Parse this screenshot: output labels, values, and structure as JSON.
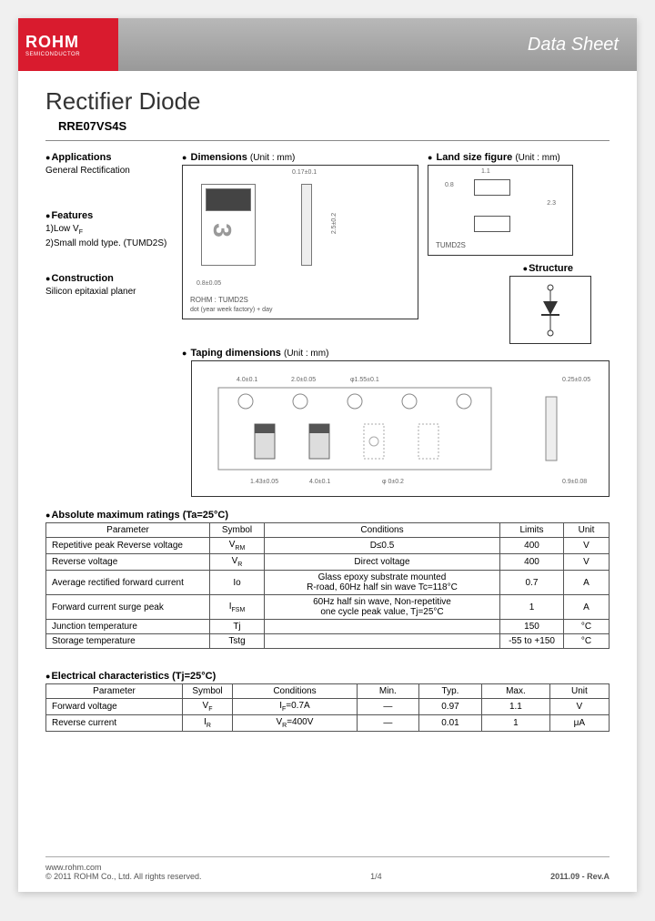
{
  "header": {
    "logo": "ROHM",
    "logo_sub": "SEMICONDUCTOR",
    "doc_type": "Data Sheet"
  },
  "title": "Rectifier Diode",
  "part_number": "RRE07VS4S",
  "sections": {
    "applications": {
      "title": "Applications",
      "body": "General Rectification"
    },
    "features": {
      "title": "Features",
      "items": [
        "1)Low V",
        "2)Small mold type. (TUMD2S)"
      ],
      "sub_f": "F"
    },
    "construction": {
      "title": "Construction",
      "body": "Silicon epitaxial planer"
    },
    "dimensions": {
      "title": "Dimensions",
      "unit": "(Unit : mm)",
      "pkg_name": "ROHM : TUMD2S",
      "note": "dot (year week factory) + day"
    },
    "land": {
      "title": "Land size figure",
      "unit": "(Unit : mm)",
      "pkg": "TUMD2S",
      "dims": {
        "w": "1.1",
        "h": "0.8",
        "pitch": "2.3"
      }
    },
    "structure": {
      "title": "Structure"
    },
    "taping": {
      "title": "Taping dimensions",
      "unit": "(Unit : mm)"
    }
  },
  "abs_max": {
    "title": "Absolute maximum ratings (Ta=25°C)",
    "headers": [
      "Parameter",
      "Symbol",
      "Conditions",
      "Limits",
      "Unit"
    ],
    "rows": [
      [
        "Repetitive peak Reverse voltage",
        "V<sub>RM</sub>",
        "D≤0.5",
        "400",
        "V"
      ],
      [
        "Reverse voltage",
        "V<sub>R</sub>",
        "Direct voltage",
        "400",
        "V"
      ],
      [
        "Average rectified forward current",
        "Io",
        "Glass epoxy substrate mounted<br>R-road, 60Hz half sin wave Tc=118°C",
        "0.7",
        "A"
      ],
      [
        "Forward current surge peak",
        "I<sub>FSM</sub>",
        "60Hz half sin wave, Non-repetitive<br>one cycle peak value, Tj=25°C",
        "1",
        "A"
      ],
      [
        "Junction temperature",
        "Tj",
        "",
        "150",
        "°C"
      ],
      [
        "Storage temperature",
        "Tstg",
        "",
        "-55 to +150",
        "°C"
      ]
    ]
  },
  "elec": {
    "title": "Electrical characteristics (Tj=25°C)",
    "headers": [
      "Parameter",
      "Symbol",
      "Conditions",
      "Min.",
      "Typ.",
      "Max.",
      "Unit"
    ],
    "rows": [
      [
        "Forward voltage",
        "V<sub>F</sub>",
        "I<sub>F</sub>=0.7A",
        "—",
        "0.97",
        "1.1",
        "V"
      ],
      [
        "Reverse current",
        "I<sub>R</sub>",
        "V<sub>R</sub>=400V",
        "—",
        "0.01",
        "1",
        "μA"
      ]
    ]
  },
  "footer": {
    "url": "www.rohm.com",
    "copyright": "© 2011  ROHM Co., Ltd. All rights reserved.",
    "page": "1/4",
    "rev": "2011.09 -  Rev.A"
  },
  "colors": {
    "logo_bg": "#d91b2e",
    "header_grad_top": "#b8b8b8",
    "header_grad_bot": "#999999",
    "border": "#555555"
  }
}
